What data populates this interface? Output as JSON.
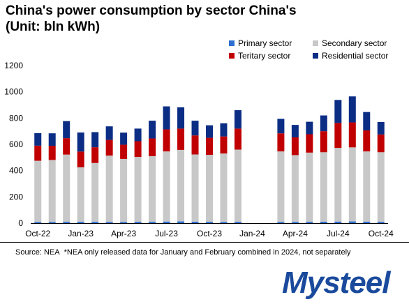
{
  "title_line1": "China's power consumption by sector China's",
  "title_line2": "(Unit: bln kWh)",
  "source_label": "Source: NEA",
  "footnote": "*NEA only released data for January and February combined in 2024, not separately",
  "logo_text": "Mysteel",
  "chart_data": {
    "type": "bar",
    "stacked": true,
    "categories": [
      "Oct-22",
      "Nov-22",
      "Dec-22",
      "Jan-23",
      "Feb-23",
      "Mar-23",
      "Apr-23",
      "May-23",
      "Jun-23",
      "Jul-23",
      "Aug-23",
      "Sep-23",
      "Oct-23",
      "Nov-23",
      "Dec-23",
      "Jan-24",
      "Feb-24",
      "Mar-24",
      "Apr-24",
      "May-24",
      "Jun-24",
      "Jul-24",
      "Aug-24",
      "Sep-24",
      "Oct-24"
    ],
    "x_tick_labels": [
      "Oct-22",
      "",
      "",
      "Jan-23",
      "",
      "",
      "Apr-23",
      "",
      "",
      "Jul-23",
      "",
      "",
      "Oct-23",
      "",
      "",
      "Jan-24",
      "",
      "",
      "Apr-24",
      "",
      "",
      "Jul-24",
      "",
      "",
      "Oct-24"
    ],
    "series": [
      {
        "name": "Primary sector",
        "color": "#2e6fd1",
        "values": [
          9,
          9,
          10,
          10,
          10,
          9,
          9,
          10,
          10,
          12,
          13,
          11,
          10,
          9,
          10,
          null,
          null,
          9,
          9,
          10,
          11,
          12,
          13,
          11,
          10
        ]
      },
      {
        "name": "Secondary sector",
        "color": "#c8c8c8",
        "values": [
          466,
          472,
          512,
          415,
          448,
          505,
          480,
          494,
          500,
          534,
          545,
          512,
          510,
          521,
          550,
          null,
          null,
          537,
          509,
          527,
          529,
          561,
          564,
          535,
          530
        ]
      },
      {
        "name": "Teritary sector",
        "color": "#c00000",
        "values": [
          115,
          108,
          125,
          120,
          120,
          120,
          108,
          120,
          135,
          168,
          162,
          145,
          130,
          130,
          160,
          null,
          null,
          138,
          135,
          140,
          160,
          190,
          190,
          160,
          135
        ]
      },
      {
        "name": "Residential sector",
        "color": "#0b2d84",
        "values": [
          95,
          95,
          130,
          145,
          115,
          103,
          92,
          96,
          135,
          175,
          162,
          112,
          95,
          100,
          140,
          null,
          null,
          110,
          95,
          95,
          120,
          175,
          198,
          140,
          95
        ]
      }
    ],
    "ylim": [
      0,
      1200
    ],
    "yticks": [
      0,
      200,
      400,
      600,
      800,
      1000,
      1200
    ],
    "grid": false,
    "legend_position": "top-right"
  }
}
